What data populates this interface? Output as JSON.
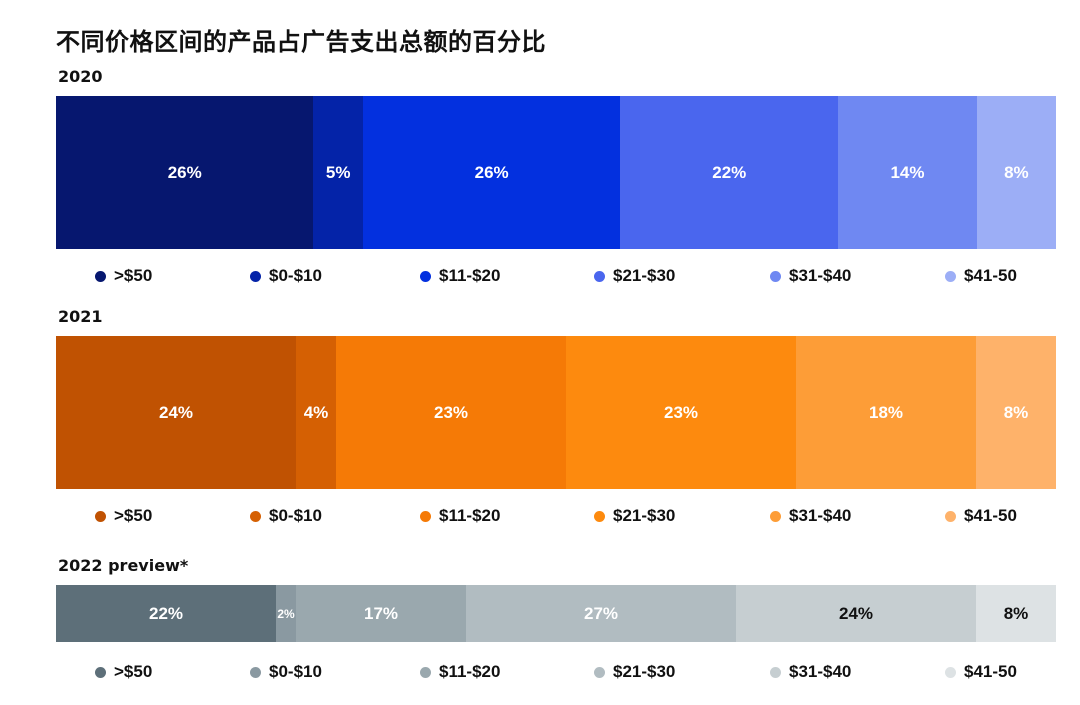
{
  "title": "不同价格区间的产品占广告支出总额的百分比",
  "chart_data": {
    "type": "bar",
    "stacked": true,
    "orientation": "horizontal",
    "unit": "%",
    "categories": [
      ">$50",
      "$0-$10",
      "$11-$20",
      "$21-$30",
      "$31-$40",
      "$41-50"
    ],
    "charts": [
      {
        "year": "2020",
        "values": [
          26,
          5,
          26,
          22,
          14,
          8
        ],
        "labels": [
          "26%",
          "5%",
          "26%",
          "22%",
          "14%",
          "8%"
        ],
        "colors": [
          "#06176f",
          "#0423a8",
          "#0330df",
          "#4a66ee",
          "#6f88f2",
          "#9caef6"
        ],
        "label_colors": [
          "#ffffff",
          "#ffffff",
          "#ffffff",
          "#ffffff",
          "#ffffff",
          "#ffffff"
        ]
      },
      {
        "year": "2021",
        "values": [
          24,
          4,
          23,
          23,
          18,
          8
        ],
        "labels": [
          "24%",
          "4%",
          "23%",
          "23%",
          "18%",
          "8%"
        ],
        "colors": [
          "#c05202",
          "#d56003",
          "#f57a06",
          "#fd8a0e",
          "#fd9d37",
          "#feb26a"
        ],
        "label_colors": [
          "#ffffff",
          "#ffffff",
          "#ffffff",
          "#ffffff",
          "#ffffff",
          "#ffffff"
        ]
      },
      {
        "year": "2022 preview*",
        "values": [
          22,
          2,
          17,
          27,
          24,
          8
        ],
        "labels": [
          "22%",
          "2%",
          "17%",
          "27%",
          "24%",
          "8%"
        ],
        "colors": [
          "#5d6f79",
          "#8a99a1",
          "#9aa8ae",
          "#b1bcc1",
          "#c6ced1",
          "#dde2e4"
        ],
        "label_colors": [
          "#ffffff",
          "#ffffff",
          "#ffffff",
          "#ffffff",
          "#111111",
          "#111111"
        ]
      }
    ]
  }
}
